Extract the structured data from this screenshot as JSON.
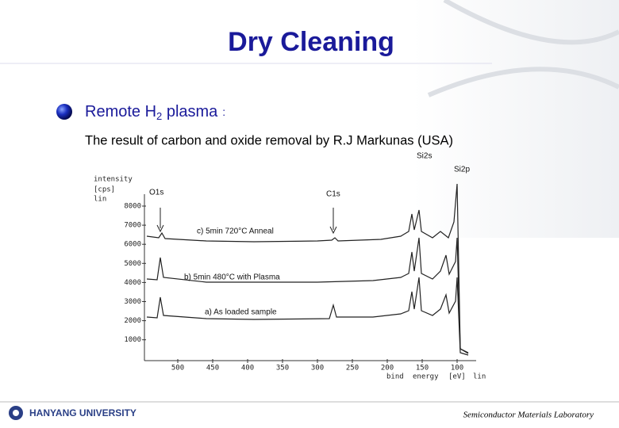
{
  "header": {
    "title": "Dry Cleaning"
  },
  "bullet": {
    "text": "Remote H",
    "subscript": "2",
    "rest": " plasma",
    "colon": ":"
  },
  "subtitle": "The result of carbon and oxide removal by R.J Markunas (USA)",
  "figure": {
    "y_label": [
      "intensity",
      "[cps]",
      "lin"
    ],
    "y_ticks": [
      8000,
      7000,
      6000,
      5000,
      4000,
      3000,
      2000,
      1000
    ],
    "x_ticks": [
      500,
      450,
      400,
      350,
      300,
      250,
      200,
      150,
      100
    ],
    "x_label": [
      "bind",
      "energy",
      "[eV]",
      "lin"
    ],
    "peaks": [
      "O1s",
      "C1s",
      "Si2s",
      "Si2p"
    ],
    "curves": [
      "c) 5min 720°C Anneal",
      "b) 5min 480°C with Plasma",
      "a) As loaded sample"
    ]
  },
  "footer": {
    "university": "HANYANG UNIVERSITY",
    "lab": "Semiconductor Materials Laboratory"
  }
}
